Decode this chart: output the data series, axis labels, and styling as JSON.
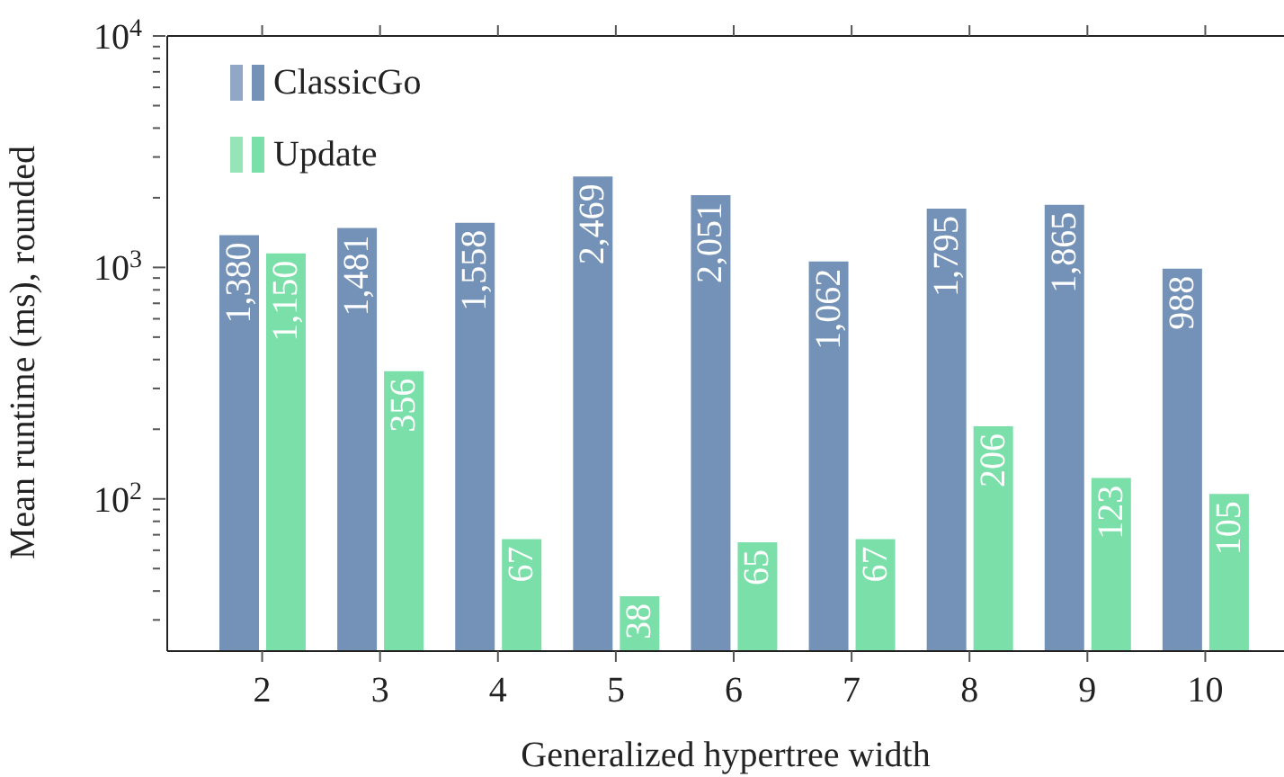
{
  "chart_data": {
    "type": "bar",
    "xlabel": "Generalized hypertree width",
    "ylabel": "Mean runtime (ms), rounded",
    "categories": [
      "2",
      "3",
      "4",
      "5",
      "6",
      "7",
      "8",
      "9",
      "10"
    ],
    "series": [
      {
        "name": "ClassicGo",
        "color": "#7492b8",
        "values": [
          1380,
          1481,
          1558,
          2469,
          2051,
          1062,
          1795,
          1865,
          988
        ],
        "value_labels": [
          "1,380",
          "1,481",
          "1,558",
          "2,469",
          "2,051",
          "1,062",
          "1,795",
          "1,865",
          "988"
        ]
      },
      {
        "name": "Update",
        "color": "#7adfa8",
        "values": [
          1150,
          356,
          67,
          38,
          65,
          67,
          206,
          123,
          105
        ],
        "value_labels": [
          "1,150",
          "356",
          "67",
          "38",
          "65",
          "67",
          "206",
          "123",
          "105"
        ]
      }
    ],
    "log": "y",
    "ylim": [
      22,
      10000
    ],
    "yticks": [
      {
        "value": 30,
        "label": null
      },
      {
        "value": 40,
        "label": null
      },
      {
        "value": 50,
        "label": null
      },
      {
        "value": 60,
        "label": null
      },
      {
        "value": 70,
        "label": null
      },
      {
        "value": 80,
        "label": null
      },
      {
        "value": 90,
        "label": null
      },
      {
        "value": 100,
        "label": "10$^{2}$"
      },
      {
        "value": 200,
        "label": null
      },
      {
        "value": 300,
        "label": null
      },
      {
        "value": 400,
        "label": null
      },
      {
        "value": 500,
        "label": null
      },
      {
        "value": 600,
        "label": null
      },
      {
        "value": 700,
        "label": null
      },
      {
        "value": 800,
        "label": null
      },
      {
        "value": 900,
        "label": null
      },
      {
        "value": 1000,
        "label": "10$^{3}$"
      },
      {
        "value": 2000,
        "label": null
      },
      {
        "value": 3000,
        "label": null
      },
      {
        "value": 4000,
        "label": null
      },
      {
        "value": 5000,
        "label": null
      },
      {
        "value": 6000,
        "label": null
      },
      {
        "value": 7000,
        "label": null
      },
      {
        "value": 8000,
        "label": null
      },
      {
        "value": 9000,
        "label": null
      },
      {
        "value": 10000,
        "label": "10$^{4}$"
      }
    ],
    "grid": false,
    "legend": "top left"
  }
}
